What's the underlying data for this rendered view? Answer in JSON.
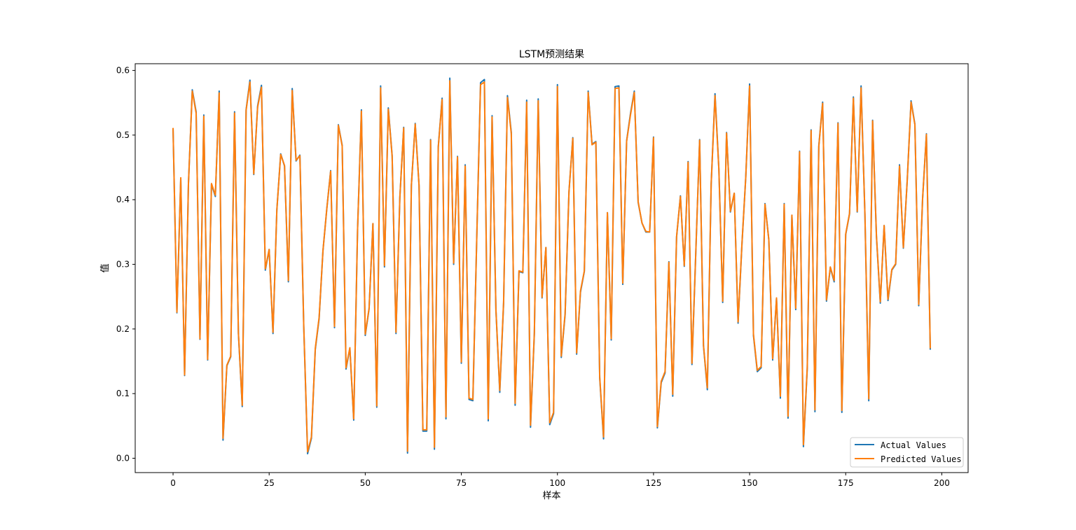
{
  "chart_data": {
    "type": "line",
    "title": "LSTM预测结果",
    "xlabel": "样本",
    "ylabel": "值",
    "xlim": [
      -9.85,
      206.85
    ],
    "ylim": [
      -0.0222,
      0.6104
    ],
    "xticks": [
      0,
      25,
      50,
      75,
      100,
      125,
      150,
      175,
      200
    ],
    "yticks": [
      0.0,
      0.1,
      0.2,
      0.3,
      0.4,
      0.5,
      0.6
    ],
    "ytick_labels": [
      "0.0",
      "0.1",
      "0.2",
      "0.3",
      "0.4",
      "0.5",
      "0.6"
    ],
    "grid": false,
    "legend_position": "lower right",
    "series": [
      {
        "name": "Actual Values",
        "color": "#1f77b4",
        "values": [
          0.509,
          0.225,
          0.432,
          0.128,
          0.424,
          0.57,
          0.536,
          0.184,
          0.531,
          0.152,
          0.424,
          0.405,
          0.568,
          0.028,
          0.143,
          0.157,
          0.536,
          0.193,
          0.08,
          0.539,
          0.585,
          0.439,
          0.545,
          0.577,
          0.291,
          0.323,
          0.193,
          0.384,
          0.471,
          0.452,
          0.273,
          0.572,
          0.46,
          0.469,
          0.204,
          0.007,
          0.031,
          0.168,
          0.216,
          0.321,
          0.386,
          0.445,
          0.202,
          0.516,
          0.484,
          0.138,
          0.17,
          0.059,
          0.353,
          0.539,
          0.19,
          0.231,
          0.363,
          0.079,
          0.576,
          0.296,
          0.542,
          0.468,
          0.193,
          0.403,
          0.512,
          0.008,
          0.422,
          0.518,
          0.422,
          0.042,
          0.042,
          0.493,
          0.014,
          0.482,
          0.557,
          0.061,
          0.588,
          0.3,
          0.467,
          0.147,
          0.454,
          0.091,
          0.089,
          0.338,
          0.581,
          0.586,
          0.058,
          0.53,
          0.229,
          0.102,
          0.24,
          0.561,
          0.504,
          0.082,
          0.289,
          0.287,
          0.554,
          0.048,
          0.193,
          0.556,
          0.248,
          0.326,
          0.052,
          0.069,
          0.578,
          0.156,
          0.222,
          0.412,
          0.496,
          0.161,
          0.257,
          0.289,
          0.568,
          0.486,
          0.49,
          0.124,
          0.03,
          0.38,
          0.183,
          0.575,
          0.576,
          0.269,
          0.491,
          0.533,
          0.568,
          0.396,
          0.364,
          0.35,
          0.35,
          0.497,
          0.047,
          0.117,
          0.132,
          0.304,
          0.096,
          0.342,
          0.406,
          0.297,
          0.459,
          0.145,
          0.318,
          0.493,
          0.174,
          0.106,
          0.424,
          0.564,
          0.448,
          0.241,
          0.504,
          0.381,
          0.41,
          0.209,
          0.33,
          0.435,
          0.579,
          0.19,
          0.134,
          0.14,
          0.394,
          0.338,
          0.152,
          0.247,
          0.093,
          0.394,
          0.062,
          0.376,
          0.23,
          0.475,
          0.018,
          0.139,
          0.508,
          0.072,
          0.483,
          0.551,
          0.243,
          0.295,
          0.273,
          0.519,
          0.071,
          0.346,
          0.378,
          0.559,
          0.381,
          0.576,
          0.377,
          0.089,
          0.523,
          0.343,
          0.24,
          0.36,
          0.244,
          0.291,
          0.3,
          0.454,
          0.325,
          0.429,
          0.553,
          0.517,
          0.236,
          0.401,
          0.502,
          0.169
        ]
      },
      {
        "name": "Predicted Values",
        "color": "#ff7f0e",
        "values": [
          0.51,
          0.226,
          0.434,
          0.129,
          0.425,
          0.568,
          0.534,
          0.185,
          0.529,
          0.153,
          0.425,
          0.407,
          0.565,
          0.031,
          0.144,
          0.158,
          0.534,
          0.194,
          0.082,
          0.538,
          0.582,
          0.44,
          0.543,
          0.574,
          0.293,
          0.323,
          0.195,
          0.384,
          0.47,
          0.453,
          0.275,
          0.569,
          0.461,
          0.468,
          0.205,
          0.01,
          0.033,
          0.17,
          0.218,
          0.321,
          0.386,
          0.444,
          0.204,
          0.515,
          0.483,
          0.14,
          0.171,
          0.061,
          0.353,
          0.537,
          0.192,
          0.232,
          0.363,
          0.081,
          0.573,
          0.298,
          0.54,
          0.467,
          0.195,
          0.403,
          0.511,
          0.011,
          0.422,
          0.517,
          0.422,
          0.044,
          0.044,
          0.492,
          0.017,
          0.481,
          0.555,
          0.064,
          0.584,
          0.302,
          0.466,
          0.149,
          0.452,
          0.093,
          0.091,
          0.338,
          0.578,
          0.582,
          0.061,
          0.528,
          0.23,
          0.105,
          0.242,
          0.558,
          0.502,
          0.085,
          0.29,
          0.288,
          0.551,
          0.051,
          0.195,
          0.553,
          0.249,
          0.326,
          0.055,
          0.071,
          0.575,
          0.158,
          0.224,
          0.412,
          0.495,
          0.163,
          0.259,
          0.29,
          0.566,
          0.485,
          0.489,
          0.126,
          0.033,
          0.38,
          0.185,
          0.572,
          0.573,
          0.271,
          0.49,
          0.531,
          0.566,
          0.397,
          0.364,
          0.351,
          0.35,
          0.496,
          0.049,
          0.119,
          0.134,
          0.303,
          0.099,
          0.343,
          0.405,
          0.298,
          0.458,
          0.147,
          0.319,
          0.492,
          0.175,
          0.109,
          0.424,
          0.561,
          0.447,
          0.243,
          0.503,
          0.382,
          0.41,
          0.211,
          0.331,
          0.435,
          0.576,
          0.192,
          0.136,
          0.142,
          0.393,
          0.338,
          0.154,
          0.248,
          0.096,
          0.393,
          0.065,
          0.376,
          0.232,
          0.474,
          0.021,
          0.141,
          0.507,
          0.075,
          0.482,
          0.549,
          0.245,
          0.296,
          0.275,
          0.518,
          0.074,
          0.347,
          0.379,
          0.557,
          0.382,
          0.573,
          0.378,
          0.092,
          0.522,
          0.344,
          0.242,
          0.36,
          0.246,
          0.292,
          0.301,
          0.452,
          0.326,
          0.429,
          0.551,
          0.516,
          0.238,
          0.401,
          0.501,
          0.171
        ]
      }
    ]
  }
}
